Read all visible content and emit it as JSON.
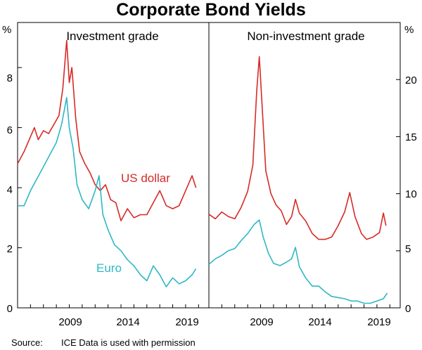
{
  "chart_data": {
    "type": "line",
    "title": "Corporate Bond Yields",
    "source_label": "Source:",
    "source_text": "ICE Data is used with permission",
    "x_ticks": [
      "2009",
      "2014",
      "2019"
    ],
    "series_colors": {
      "us_dollar": "#d62b26",
      "euro": "#2fb8c4"
    },
    "panels": [
      {
        "name": "investment-grade",
        "title": "Investment grade",
        "y_unit": "%",
        "ylim": [
          0,
          9.5
        ],
        "y_ticks": [
          "0",
          "2",
          "4",
          "6",
          "8"
        ],
        "y_tick_values": [
          0,
          2,
          4,
          6,
          8
        ],
        "xlim": [
          2005,
          2019.8
        ],
        "series": [
          {
            "key": "us_dollar",
            "name": "US dollar",
            "points": [
              [
                2005.0,
                4.8
              ],
              [
                2005.5,
                5.2
              ],
              [
                2006.0,
                5.7
              ],
              [
                2006.3,
                6.0
              ],
              [
                2006.6,
                5.6
              ],
              [
                2007.0,
                5.9
              ],
              [
                2007.4,
                5.8
              ],
              [
                2007.8,
                6.1
              ],
              [
                2008.2,
                6.4
              ],
              [
                2008.5,
                7.3
              ],
              [
                2008.8,
                8.9
              ],
              [
                2009.0,
                7.5
              ],
              [
                2009.2,
                8.0
              ],
              [
                2009.5,
                6.3
              ],
              [
                2009.8,
                5.2
              ],
              [
                2010.2,
                4.8
              ],
              [
                2010.6,
                4.5
              ],
              [
                2011.0,
                4.1
              ],
              [
                2011.4,
                3.9
              ],
              [
                2011.8,
                4.1
              ],
              [
                2012.2,
                3.6
              ],
              [
                2012.6,
                3.5
              ],
              [
                2013.0,
                2.9
              ],
              [
                2013.5,
                3.3
              ],
              [
                2014.0,
                3.0
              ],
              [
                2014.5,
                3.1
              ],
              [
                2015.0,
                3.1
              ],
              [
                2015.5,
                3.5
              ],
              [
                2016.0,
                3.9
              ],
              [
                2016.5,
                3.4
              ],
              [
                2017.0,
                3.3
              ],
              [
                2017.5,
                3.4
              ],
              [
                2018.0,
                3.9
              ],
              [
                2018.5,
                4.4
              ],
              [
                2018.8,
                4.0
              ]
            ]
          },
          {
            "key": "euro",
            "name": "Euro",
            "points": [
              [
                2005.0,
                3.4
              ],
              [
                2005.5,
                3.4
              ],
              [
                2006.0,
                3.9
              ],
              [
                2006.5,
                4.3
              ],
              [
                2007.0,
                4.7
              ],
              [
                2007.5,
                5.1
              ],
              [
                2008.0,
                5.5
              ],
              [
                2008.4,
                6.1
              ],
              [
                2008.8,
                7.0
              ],
              [
                2009.0,
                6.0
              ],
              [
                2009.3,
                5.3
              ],
              [
                2009.6,
                4.1
              ],
              [
                2010.0,
                3.6
              ],
              [
                2010.5,
                3.3
              ],
              [
                2011.0,
                3.9
              ],
              [
                2011.3,
                4.4
              ],
              [
                2011.6,
                3.1
              ],
              [
                2012.0,
                2.6
              ],
              [
                2012.5,
                2.1
              ],
              [
                2013.0,
                1.9
              ],
              [
                2013.5,
                1.6
              ],
              [
                2014.0,
                1.4
              ],
              [
                2014.5,
                1.1
              ],
              [
                2015.0,
                0.9
              ],
              [
                2015.5,
                1.4
              ],
              [
                2016.0,
                1.1
              ],
              [
                2016.5,
                0.7
              ],
              [
                2017.0,
                1.0
              ],
              [
                2017.5,
                0.8
              ],
              [
                2018.0,
                0.9
              ],
              [
                2018.5,
                1.1
              ],
              [
                2018.8,
                1.3
              ]
            ]
          }
        ]
      },
      {
        "name": "non-investment-grade",
        "title": "Non-investment grade",
        "y_unit": "%",
        "ylim": [
          0,
          25
        ],
        "y_ticks": [
          "0",
          "5",
          "10",
          "15",
          "20"
        ],
        "y_tick_values": [
          0,
          5,
          10,
          15,
          20
        ],
        "xlim": [
          2005,
          2019.8
        ],
        "series": [
          {
            "key": "us_dollar",
            "name": "US dollar",
            "points": [
              [
                2005.0,
                8.2
              ],
              [
                2005.5,
                7.8
              ],
              [
                2006.0,
                8.4
              ],
              [
                2006.5,
                8.0
              ],
              [
                2007.0,
                7.8
              ],
              [
                2007.5,
                8.8
              ],
              [
                2008.0,
                10.2
              ],
              [
                2008.4,
                12.5
              ],
              [
                2008.7,
                19.0
              ],
              [
                2008.9,
                22.0
              ],
              [
                2009.1,
                18.0
              ],
              [
                2009.4,
                12.0
              ],
              [
                2009.8,
                10.0
              ],
              [
                2010.2,
                9.0
              ],
              [
                2010.6,
                8.5
              ],
              [
                2011.0,
                7.3
              ],
              [
                2011.4,
                8.0
              ],
              [
                2011.7,
                9.5
              ],
              [
                2012.0,
                8.3
              ],
              [
                2012.5,
                7.6
              ],
              [
                2013.0,
                6.5
              ],
              [
                2013.5,
                6.0
              ],
              [
                2014.0,
                6.0
              ],
              [
                2014.5,
                6.2
              ],
              [
                2015.0,
                7.2
              ],
              [
                2015.5,
                8.4
              ],
              [
                2015.9,
                10.1
              ],
              [
                2016.3,
                8.0
              ],
              [
                2016.8,
                6.5
              ],
              [
                2017.2,
                6.0
              ],
              [
                2017.7,
                6.2
              ],
              [
                2018.2,
                6.6
              ],
              [
                2018.5,
                8.3
              ],
              [
                2018.7,
                7.2
              ]
            ]
          },
          {
            "key": "euro",
            "name": "Euro",
            "points": [
              [
                2005.0,
                3.8
              ],
              [
                2005.5,
                4.3
              ],
              [
                2006.0,
                4.6
              ],
              [
                2006.5,
                5.0
              ],
              [
                2007.0,
                5.2
              ],
              [
                2007.5,
                5.9
              ],
              [
                2008.0,
                6.5
              ],
              [
                2008.5,
                7.3
              ],
              [
                2008.9,
                7.7
              ],
              [
                2009.2,
                6.2
              ],
              [
                2009.6,
                4.8
              ],
              [
                2010.0,
                3.9
              ],
              [
                2010.5,
                3.7
              ],
              [
                2011.0,
                4.0
              ],
              [
                2011.4,
                4.3
              ],
              [
                2011.7,
                5.3
              ],
              [
                2012.0,
                3.6
              ],
              [
                2012.5,
                2.6
              ],
              [
                2013.0,
                1.9
              ],
              [
                2013.5,
                1.9
              ],
              [
                2014.0,
                1.4
              ],
              [
                2014.5,
                1.0
              ],
              [
                2015.0,
                0.9
              ],
              [
                2015.5,
                0.8
              ],
              [
                2016.0,
                0.6
              ],
              [
                2016.5,
                0.6
              ],
              [
                2017.0,
                0.4
              ],
              [
                2017.5,
                0.4
              ],
              [
                2018.0,
                0.6
              ],
              [
                2018.5,
                0.8
              ],
              [
                2018.8,
                1.3
              ]
            ]
          }
        ]
      }
    ]
  }
}
